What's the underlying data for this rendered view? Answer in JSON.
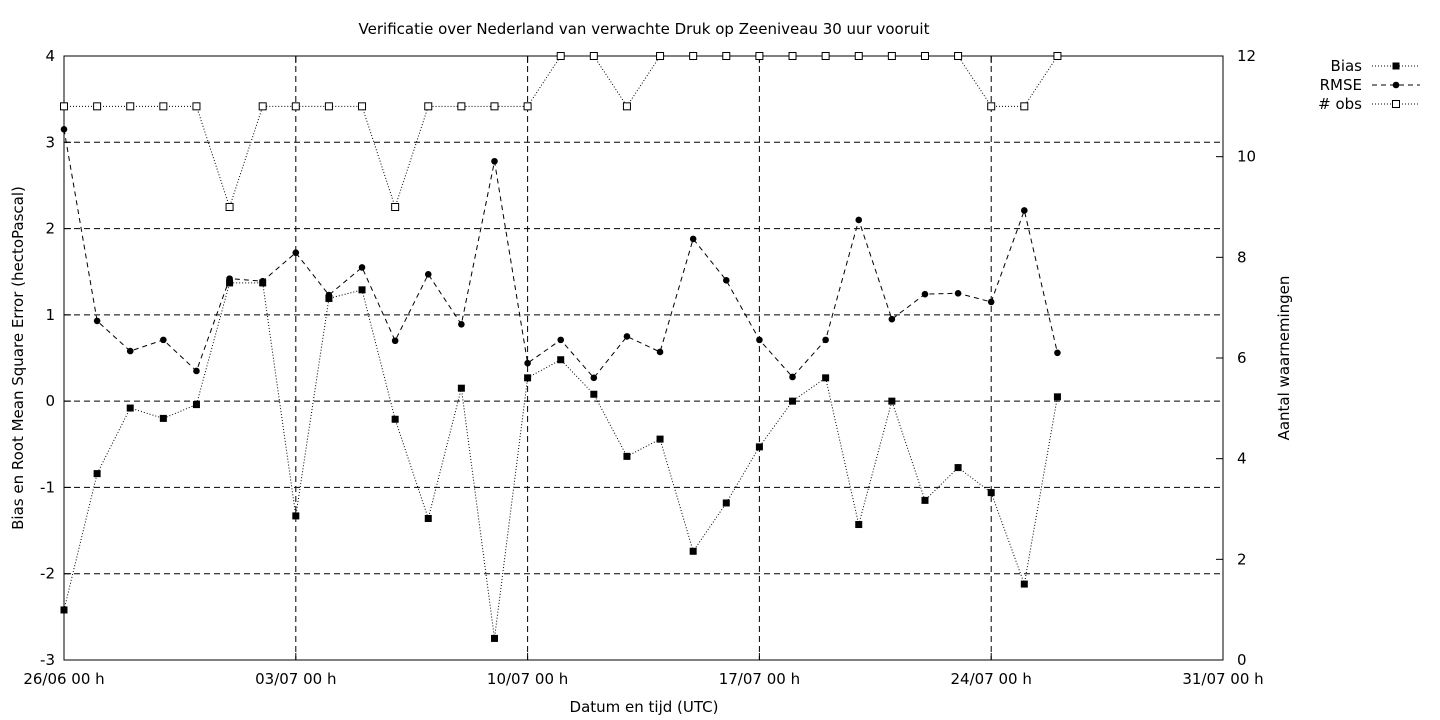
{
  "chart_data": {
    "type": "line",
    "title": "Verificatie over Nederland van verwachte Druk op Zeeniveau 30 uur vooruit",
    "xlabel": "Datum en tijd (UTC)",
    "ylabel": "Bias en Root Mean Square Error (hectoPascal)",
    "y2label": "Aantal waarnemingen",
    "x_ticks": [
      "26/06 00 h",
      "03/07 00 h",
      "10/07 00 h",
      "17/07 00 h",
      "24/07 00 h",
      "31/07 00 h"
    ],
    "x_tick_days": [
      0,
      7,
      14,
      21,
      28,
      35
    ],
    "x_range_days": [
      0,
      35
    ],
    "ylim": [
      -3,
      4
    ],
    "y_ticks": [
      "-3",
      "-2",
      "-1",
      "0",
      "1",
      "2",
      "3",
      "4"
    ],
    "y2lim": [
      0,
      12
    ],
    "y2_ticks": [
      "0",
      "2",
      "4",
      "6",
      "8",
      "10",
      "12"
    ],
    "grid": true,
    "legend_position": "top-right-outside",
    "series": [
      {
        "name": "Bias",
        "axis": "left",
        "line_style": "dotted",
        "marker": "filled-square",
        "x_days": [
          0,
          1,
          2,
          3,
          4,
          5,
          6,
          7,
          8,
          9,
          10,
          11,
          12,
          13,
          14,
          15,
          16,
          17,
          18,
          19,
          20,
          21,
          22,
          23,
          24,
          25,
          26,
          27,
          28,
          29,
          30
        ],
        "values": [
          -2.42,
          -0.84,
          -0.08,
          -0.2,
          -0.04,
          1.37,
          1.37,
          -1.33,
          1.19,
          1.29,
          -0.21,
          -1.36,
          0.15,
          -2.75,
          0.27,
          0.48,
          0.08,
          -0.64,
          -0.44,
          -1.74,
          -1.18,
          -0.53,
          0.0,
          0.27,
          -1.43,
          0.0,
          -1.15,
          -0.77,
          -1.06,
          -2.12,
          0.05
        ]
      },
      {
        "name": "RMSE",
        "axis": "left",
        "line_style": "dashed",
        "marker": "filled-circle",
        "x_days": [
          0,
          1,
          2,
          3,
          4,
          5,
          6,
          7,
          8,
          9,
          10,
          11,
          12,
          13,
          14,
          15,
          16,
          17,
          18,
          19,
          20,
          21,
          22,
          23,
          24,
          25,
          26,
          27,
          28,
          29,
          30
        ],
        "values": [
          3.15,
          0.93,
          0.58,
          0.71,
          0.35,
          1.42,
          1.39,
          1.72,
          1.23,
          1.55,
          0.7,
          1.47,
          0.89,
          2.78,
          0.44,
          0.71,
          0.27,
          0.75,
          0.57,
          1.88,
          1.4,
          0.71,
          0.28,
          0.71,
          2.1,
          0.95,
          1.24,
          1.25,
          1.15,
          2.21,
          0.56
        ]
      },
      {
        "name": "# obs",
        "axis": "right",
        "line_style": "dotted",
        "marker": "open-square",
        "x_days": [
          0,
          1,
          2,
          3,
          4,
          5,
          6,
          7,
          8,
          9,
          10,
          11,
          12,
          13,
          14,
          15,
          16,
          17,
          18,
          19,
          20,
          21,
          22,
          23,
          24,
          25,
          26,
          27,
          28,
          29,
          30
        ],
        "values": [
          11,
          11,
          11,
          11,
          11,
          9,
          11,
          11,
          11,
          11,
          9,
          11,
          11,
          11,
          11,
          12,
          12,
          11,
          12,
          12,
          12,
          12,
          12,
          12,
          12,
          12,
          12,
          12,
          11,
          11,
          12
        ]
      }
    ]
  }
}
